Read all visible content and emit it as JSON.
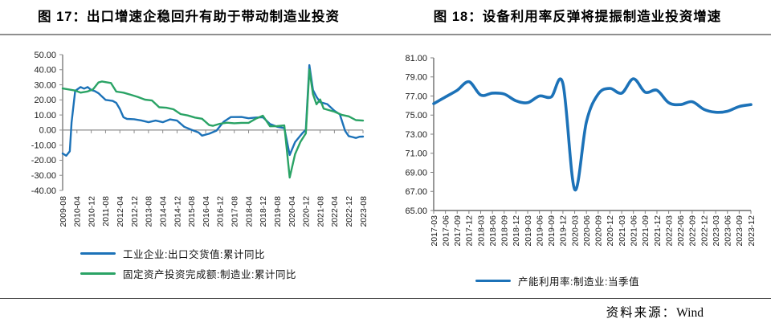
{
  "source": {
    "label": "资料来源：",
    "value": "Wind"
  },
  "colors": {
    "series_blue": "#1c72b8",
    "series_green": "#2aa365",
    "axis_gray": "#8c8c8c",
    "text_dark": "#1a1a1a"
  },
  "chart_data": [
    {
      "type": "line",
      "title": "图 17：出口增速企稳回升有助于带动制造业投资",
      "ylabel": "",
      "xlabel": "",
      "ylim": [
        -40,
        50
      ],
      "grid": false,
      "legend_position": "bottom",
      "y_tick_labels": [
        "50.00",
        "40.00",
        "30.00",
        "20.00",
        "10.00",
        "0.00",
        "-10.00",
        "-20.00",
        "-30.00",
        "-40.00"
      ],
      "x_tick_labels": [
        "2009-08",
        "2010-04",
        "2010-12",
        "2011-08",
        "2012-04",
        "2012-12",
        "2013-08",
        "2014-04",
        "2014-12",
        "2015-08",
        "2016-04",
        "2016-12",
        "2017-08",
        "2018-04",
        "2018-12",
        "2019-08",
        "2020-04",
        "2020-12",
        "2021-08",
        "2022-04",
        "2022-12",
        "2023-08"
      ],
      "series": [
        {
          "name": "工业企业:出口交货值:累计同比",
          "color": "#1c72b8",
          "points": [
            [
              "2009-08",
              -15.5
            ],
            [
              "2009-10",
              -17.0
            ],
            [
              "2009-12",
              -14.0
            ],
            [
              "2010-01",
              5.0
            ],
            [
              "2010-03",
              26.0
            ],
            [
              "2010-06",
              28.5
            ],
            [
              "2010-08",
              27.5
            ],
            [
              "2010-10",
              28.5
            ],
            [
              "2010-12",
              26.5
            ],
            [
              "2011-02",
              25.8
            ],
            [
              "2011-04",
              24.5
            ],
            [
              "2011-08",
              20.0
            ],
            [
              "2011-12",
              19.3
            ],
            [
              "2012-02",
              18.0
            ],
            [
              "2012-04",
              14.0
            ],
            [
              "2012-06",
              8.5
            ],
            [
              "2012-08",
              7.4
            ],
            [
              "2012-12",
              7.2
            ],
            [
              "2013-04",
              6.4
            ],
            [
              "2013-08",
              5.2
            ],
            [
              "2013-12",
              6.3
            ],
            [
              "2014-04",
              5.2
            ],
            [
              "2014-08",
              7.1
            ],
            [
              "2014-12",
              6.3
            ],
            [
              "2015-04",
              2.2
            ],
            [
              "2015-08",
              0.2
            ],
            [
              "2015-12",
              -1.6
            ],
            [
              "2016-02",
              -3.7
            ],
            [
              "2016-06",
              -2.4
            ],
            [
              "2016-10",
              -0.4
            ],
            [
              "2017-02",
              5.5
            ],
            [
              "2017-06",
              8.6
            ],
            [
              "2017-12",
              8.7
            ],
            [
              "2018-04",
              7.8
            ],
            [
              "2018-08",
              8.3
            ],
            [
              "2018-12",
              8.5
            ],
            [
              "2019-04",
              4.0
            ],
            [
              "2019-08",
              2.2
            ],
            [
              "2019-12",
              1.3
            ],
            [
              "2020-03",
              -16.5
            ],
            [
              "2020-06",
              -8.0
            ],
            [
              "2020-10",
              -2.2
            ],
            [
              "2020-12",
              0.2
            ],
            [
              "2021-02",
              43.0
            ],
            [
              "2021-04",
              26.5
            ],
            [
              "2021-06",
              22.0
            ],
            [
              "2021-08",
              18.5
            ],
            [
              "2021-12",
              17.2
            ],
            [
              "2022-04",
              12.8
            ],
            [
              "2022-07",
              10.5
            ],
            [
              "2022-10",
              -0.5
            ],
            [
              "2022-12",
              -4.0
            ],
            [
              "2023-02",
              -4.6
            ],
            [
              "2023-04",
              -5.2
            ],
            [
              "2023-06",
              -4.4
            ],
            [
              "2023-08",
              -4.3
            ]
          ]
        },
        {
          "name": "固定资产投资完成额:制造业:累计同比",
          "color": "#2aa365",
          "points": [
            [
              "2009-08",
              27.6
            ],
            [
              "2009-12",
              26.8
            ],
            [
              "2010-03",
              26.2
            ],
            [
              "2010-06",
              24.8
            ],
            [
              "2010-10",
              25.6
            ],
            [
              "2011-01",
              27.0
            ],
            [
              "2011-04",
              31.5
            ],
            [
              "2011-06",
              32.2
            ],
            [
              "2011-08",
              31.8
            ],
            [
              "2011-11",
              31.2
            ],
            [
              "2012-02",
              25.5
            ],
            [
              "2012-06",
              24.8
            ],
            [
              "2012-10",
              23.4
            ],
            [
              "2013-02",
              22.0
            ],
            [
              "2013-06",
              20.2
            ],
            [
              "2013-10",
              19.6
            ],
            [
              "2014-02",
              15.1
            ],
            [
              "2014-06",
              14.8
            ],
            [
              "2014-10",
              13.8
            ],
            [
              "2015-02",
              10.6
            ],
            [
              "2015-06",
              9.7
            ],
            [
              "2015-10",
              8.3
            ],
            [
              "2016-02",
              7.5
            ],
            [
              "2016-06",
              3.3
            ],
            [
              "2016-08",
              2.8
            ],
            [
              "2016-12",
              4.2
            ],
            [
              "2017-04",
              4.9
            ],
            [
              "2017-08",
              4.5
            ],
            [
              "2017-12",
              4.8
            ],
            [
              "2018-04",
              4.8
            ],
            [
              "2018-08",
              7.5
            ],
            [
              "2018-12",
              9.5
            ],
            [
              "2019-04",
              2.5
            ],
            [
              "2019-08",
              2.6
            ],
            [
              "2019-12",
              3.1
            ],
            [
              "2020-03",
              -31.5
            ],
            [
              "2020-06",
              -16.0
            ],
            [
              "2020-09",
              -7.8
            ],
            [
              "2020-12",
              -2.2
            ],
            [
              "2021-02",
              40.1
            ],
            [
              "2021-04",
              23.8
            ],
            [
              "2021-06",
              17.1
            ],
            [
              "2021-08",
              20.3
            ],
            [
              "2021-10",
              14.2
            ],
            [
              "2021-12",
              13.5
            ],
            [
              "2022-04",
              12.2
            ],
            [
              "2022-08",
              10.1
            ],
            [
              "2022-12",
              9.1
            ],
            [
              "2023-04",
              6.6
            ],
            [
              "2023-08",
              6.3
            ]
          ]
        }
      ]
    },
    {
      "type": "line",
      "title": "图 18：设备利用率反弹将提振制造业投资增速",
      "ylabel": "",
      "xlabel": "",
      "ylim": [
        65,
        81
      ],
      "grid": false,
      "legend_position": "bottom",
      "y_tick_labels": [
        "81.00",
        "79.00",
        "77.00",
        "75.00",
        "73.00",
        "71.00",
        "69.00",
        "67.00",
        "65.00"
      ],
      "x": [
        "2017-03",
        "2017-06",
        "2017-09",
        "2017-12",
        "2018-03",
        "2018-06",
        "2018-09",
        "2018-12",
        "2019-03",
        "2019-06",
        "2019-09",
        "2019-12",
        "2020-03",
        "2020-06",
        "2020-09",
        "2020-12",
        "2021-03",
        "2021-06",
        "2021-09",
        "2021-12",
        "2022-03",
        "2022-06",
        "2022-09",
        "2022-12",
        "2023-03",
        "2023-06",
        "2023-09",
        "2023-12"
      ],
      "series": [
        {
          "name": "产能利用率:制造业:当季值",
          "color": "#1c72b8",
          "values": [
            76.2,
            76.9,
            77.6,
            78.5,
            77.1,
            77.3,
            77.2,
            76.5,
            76.3,
            77.0,
            76.9,
            78.3,
            67.2,
            74.3,
            77.2,
            77.8,
            77.3,
            78.8,
            77.4,
            77.6,
            76.3,
            76.1,
            76.4,
            75.6,
            75.3,
            75.4,
            75.9,
            76.1
          ]
        }
      ]
    }
  ]
}
